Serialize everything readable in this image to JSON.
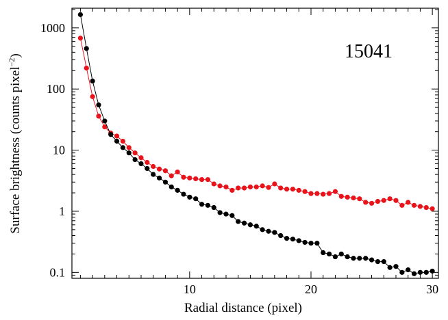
{
  "chart_data": {
    "type": "line",
    "annotation": "15041",
    "xlabel": "Radial distance (pixel)",
    "ylabel_main": "Surface brightness (counts pixel",
    "ylabel_sup": "−2",
    "ylabel_end": ")",
    "xlim": [
      0.3,
      30.5
    ],
    "ylim": [
      0.08,
      2100
    ],
    "yscale": "log",
    "xticks": [
      10,
      20,
      30
    ],
    "xtick_labels": [
      "10",
      "20",
      "30"
    ],
    "yticks": [
      0.1,
      1,
      10,
      100,
      1000
    ],
    "ytick_labels": [
      "0.1",
      "1",
      "10",
      "100",
      "1000"
    ],
    "grid": false,
    "series": [
      {
        "color": "#000000",
        "x": [
          1,
          1.5,
          2,
          2.5,
          3,
          3.5,
          4,
          4.5,
          5,
          5.5,
          6,
          6.5,
          7,
          7.5,
          8,
          8.5,
          9,
          9.5,
          10,
          10.5,
          11,
          11.5,
          12,
          12.5,
          13,
          13.5,
          14,
          14.5,
          15,
          15.5,
          16,
          16.5,
          17,
          17.5,
          18,
          18.5,
          19,
          19.5,
          20,
          20.5,
          21,
          21.5,
          22,
          22.5,
          23,
          23.5,
          24,
          24.5,
          25,
          25.5,
          26,
          26.5,
          27,
          27.5,
          28,
          28.5,
          29,
          29.5,
          30
        ],
        "y": [
          1650,
          460,
          135,
          55,
          30,
          18,
          14,
          11,
          9,
          7,
          6,
          5,
          4,
          3.5,
          3,
          2.5,
          2.2,
          1.9,
          1.7,
          1.6,
          1.3,
          1.25,
          1.15,
          0.95,
          0.9,
          0.85,
          0.68,
          0.64,
          0.6,
          0.57,
          0.5,
          0.47,
          0.45,
          0.4,
          0.36,
          0.35,
          0.33,
          0.31,
          0.3,
          0.3,
          0.21,
          0.2,
          0.18,
          0.2,
          0.18,
          0.17,
          0.17,
          0.17,
          0.16,
          0.15,
          0.15,
          0.12,
          0.125,
          0.1,
          0.11,
          0.095,
          0.1,
          0.1,
          0.105
        ]
      },
      {
        "color": "#e8141b",
        "x": [
          1,
          1.5,
          2,
          2.5,
          3,
          3.5,
          4,
          4.5,
          5,
          5.5,
          6,
          6.5,
          7,
          7.5,
          8,
          8.5,
          9,
          9.5,
          10,
          10.5,
          11,
          11.5,
          12,
          12.5,
          13,
          13.5,
          14,
          14.5,
          15,
          15.5,
          16,
          16.5,
          17,
          17.5,
          18,
          18.5,
          19,
          19.5,
          20,
          20.5,
          21,
          21.5,
          22,
          22.5,
          23,
          23.5,
          24,
          24.5,
          25,
          25.5,
          26,
          26.5,
          27,
          27.5,
          28,
          28.5,
          29,
          29.5,
          30
        ],
        "y": [
          680,
          220,
          75,
          36,
          24,
          19,
          17,
          14,
          11,
          9,
          7.5,
          6.3,
          5.4,
          4.9,
          4.6,
          3.8,
          4.4,
          3.6,
          3.5,
          3.4,
          3.3,
          3.3,
          2.8,
          2.6,
          2.5,
          2.2,
          2.4,
          2.4,
          2.5,
          2.5,
          2.6,
          2.45,
          2.8,
          2.4,
          2.3,
          2.3,
          2.2,
          2.1,
          1.95,
          1.95,
          1.9,
          1.95,
          2.1,
          1.75,
          1.7,
          1.65,
          1.6,
          1.4,
          1.35,
          1.45,
          1.5,
          1.6,
          1.5,
          1.25,
          1.4,
          1.25,
          1.2,
          1.15,
          1.1
        ]
      }
    ]
  }
}
